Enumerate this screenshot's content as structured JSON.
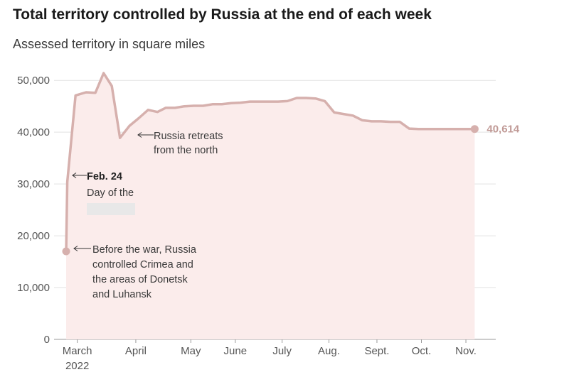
{
  "chart_data": {
    "type": "area",
    "title": "Total territory controlled by Russia at the end of each week",
    "subtitle": "Assessed territory in square miles",
    "ylim": [
      0,
      52000
    ],
    "yticks": [
      0,
      10000,
      20000,
      30000,
      40000,
      50000
    ],
    "ytick_labels": [
      "0",
      "10,000",
      "20,000",
      "30,000",
      "40,000",
      "50,000"
    ],
    "xticks": [
      {
        "label": "March",
        "sub": "2022",
        "week": 0
      },
      {
        "label": "April",
        "week": 5
      },
      {
        "label": "May",
        "week": 9.7
      },
      {
        "label": "June",
        "week": 13.5
      },
      {
        "label": "July",
        "week": 17.5
      },
      {
        "label": "Aug.",
        "week": 21.5
      },
      {
        "label": "Sept.",
        "week": 25.6
      },
      {
        "label": "Oct.",
        "week": 29.4
      },
      {
        "label": "Nov.",
        "week": 33.2
      }
    ],
    "series": [
      {
        "x": [
          -0.1,
          0,
          0.7,
          1.6,
          2.4,
          3.1,
          3.8,
          4.5,
          5.3,
          6.1,
          6.9,
          7.7,
          8.4,
          9.2,
          10.0,
          10.8,
          11.6,
          12.4,
          13.2,
          14.0,
          14.8,
          15.6,
          16.4,
          17.2,
          18.0,
          18.8,
          19.6,
          20.4,
          21.2,
          22.0,
          22.8,
          23.6,
          24.4,
          25.2,
          26.0,
          26.8,
          27.6,
          28.4,
          29.2,
          30.0,
          30.8,
          31.6,
          32.4,
          33.2,
          34.0,
          34.8
        ],
        "values": [
          17000,
          30400,
          47100,
          47700,
          47600,
          51400,
          48900,
          38900,
          41200,
          42700,
          44300,
          43900,
          44700,
          44700,
          45000,
          45100,
          45100,
          45400,
          45400,
          45600,
          45700,
          45900,
          45900,
          45900,
          45900,
          46000,
          46600,
          46600,
          46500,
          46000,
          43800,
          43500,
          43200,
          42300,
          42100,
          42100,
          42000,
          42000,
          40700,
          40614,
          40614,
          40614,
          40614,
          40614,
          40614,
          40614
        ]
      }
    ],
    "end_value_label": "40,614",
    "annotations": [
      {
        "lines": [
          "Before the war, Russia",
          "controlled Crimea and",
          "the areas of Donetsk",
          "and Luhansk"
        ],
        "bold_first": false
      },
      {
        "lines": [
          "Feb. 24",
          "Day of the"
        ],
        "bold_first": true
      },
      {
        "lines": [
          "Russia retreats",
          "from the north"
        ],
        "bold_first": false
      }
    ],
    "grid": true,
    "colors": {
      "line": "#d6b0ad",
      "fill": "#fbeceb",
      "grid": "#e2e2e2",
      "end_label": "#c09a96"
    }
  }
}
